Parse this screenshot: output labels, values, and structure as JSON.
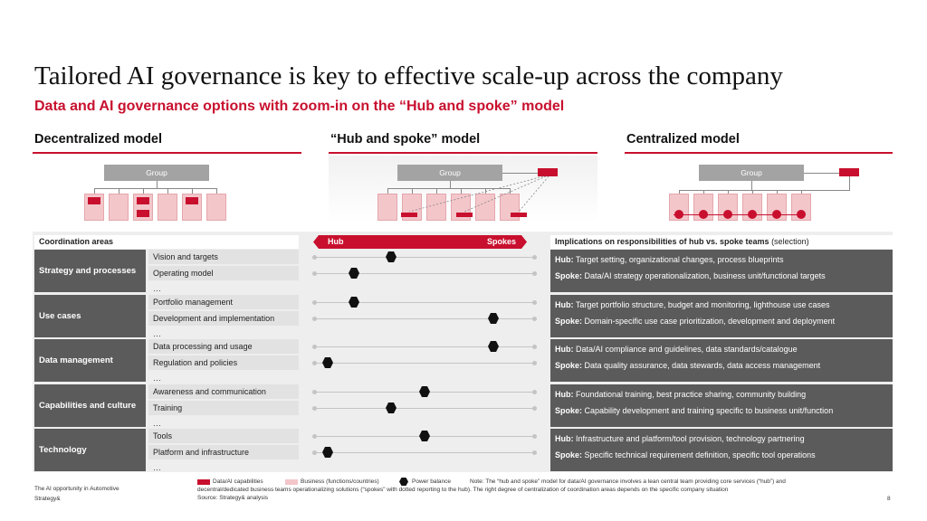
{
  "title": "Tailored AI governance is key to effective scale-up across the company",
  "subtitle": "Data and AI governance options with zoom-in on the “Hub and spoke” model",
  "columns": {
    "decentralized": "Decentralized model",
    "hub_spoke": "“Hub and spoke” model",
    "centralized": "Centralized model"
  },
  "group_label": "Group",
  "colors": {
    "accent": "#c8102e",
    "dark_gray": "#5b5b5b",
    "light_pink": "#f3c6ca"
  },
  "table": {
    "coordination_header": "Coordination areas",
    "hub_label": "Hub",
    "spokes_label": "Spokes",
    "implications_header": "Implications on responsibilities of hub vs. spoke teams",
    "implications_suffix": " (selection)",
    "hub_prefix": "Hub:",
    "spoke_prefix": "Spoke:",
    "ellipsis": "…",
    "areas": [
      {
        "name": "Strategy and processes",
        "items": [
          {
            "label": "Vision and targets",
            "power_balance": 0.35
          },
          {
            "label": "Operating model",
            "power_balance": 0.18
          }
        ],
        "hub": "Target setting, organizational changes, process blueprints",
        "spoke": "Data/AI strategy operationalization, business unit/functional targets"
      },
      {
        "name": "Use cases",
        "items": [
          {
            "label": "Portfolio management",
            "power_balance": 0.18
          },
          {
            "label": "Development and implementation",
            "power_balance": 0.81
          }
        ],
        "hub": "Target portfolio structure, budget and monitoring, lighthouse use cases",
        "spoke": "Domain-specific use case prioritization, development and deployment"
      },
      {
        "name": "Data management",
        "items": [
          {
            "label": "Data processing and usage",
            "power_balance": 0.81
          },
          {
            "label": "Regulation and policies",
            "power_balance": 0.06
          }
        ],
        "hub": "Data/AI compliance and guidelines, data standards/catalogue",
        "spoke": "Data quality assurance, data stewards, data access management"
      },
      {
        "name": "Capabilities and culture",
        "items": [
          {
            "label": "Awareness and communication",
            "power_balance": 0.5
          },
          {
            "label": "Training",
            "power_balance": 0.35
          }
        ],
        "hub": "Foundational training, best practice sharing, community building",
        "spoke": "Capability development and training specific to business unit/function"
      },
      {
        "name": "Technology",
        "items": [
          {
            "label": "Tools",
            "power_balance": 0.5
          },
          {
            "label": "Platform and infrastructure",
            "power_balance": 0.06
          }
        ],
        "hub": "Infrastructure and platform/tool provision, technology partnering",
        "spoke": "Specific technical requirement definition, specific tool operations"
      }
    ]
  },
  "footer": {
    "source_line1": "The AI opportunity in Automotive",
    "source_line2": "Strategy&",
    "legend": {
      "data_ai": "Data/AI capabilities",
      "business": "Business (functions/countries)",
      "power": "Power balance"
    },
    "note_line1": "Note: The “hub and spoke” model for data/AI governance involves a lean central team providing core services (“hub”) and",
    "note_line2": "decentral/dedicated business teams operationalizing solutions (“spokes” with dotted reporting to the hub). The right degree of centralization of coordination areas depends on the specific company situation",
    "source": "Source: Strategy& analysis",
    "page_number": "8"
  }
}
